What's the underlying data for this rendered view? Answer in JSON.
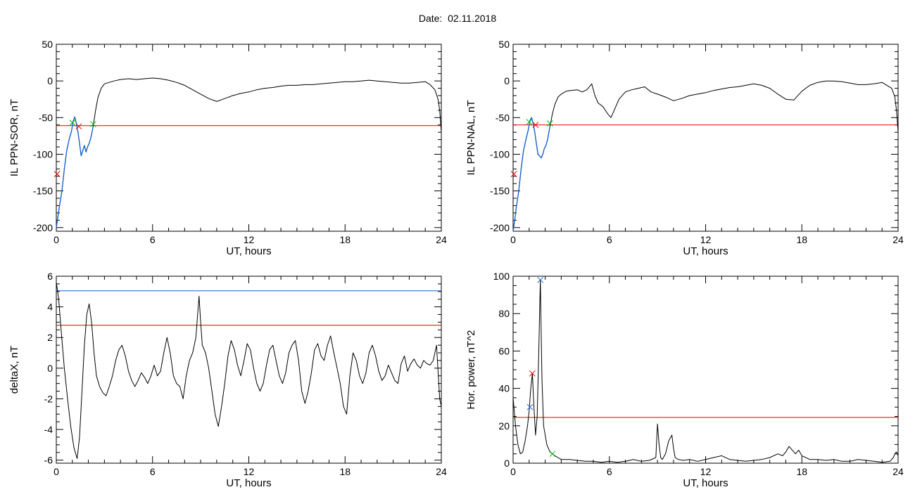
{
  "page": {
    "title": "Date:  02.11.2018"
  },
  "colors": {
    "data": "#000000",
    "threshold": "#e00000",
    "blue": "#1560d0",
    "green": "#00b400",
    "red_marker": "#e00000"
  },
  "chart_data": [
    {
      "type": "line",
      "xlabel": "UT, hours",
      "ylabel": "IL PPN-SOR, nT",
      "xlim": [
        0,
        24
      ],
      "ylim": [
        -205,
        50
      ],
      "xticks": [
        0,
        6,
        12,
        18,
        24
      ],
      "yticks": [
        50,
        0,
        -50,
        -100,
        -150,
        -200
      ],
      "x_minor_step": 1,
      "y_minor_step": 10,
      "threshold": -61,
      "series": [
        {
          "role": "signal",
          "color": "#000000",
          "x": [
            0,
            0.1,
            0.2,
            0.35,
            0.5,
            0.65,
            0.8,
            0.95,
            1.05,
            1.15,
            1.25,
            1.35,
            1.45,
            1.55,
            1.65,
            1.75,
            1.85,
            1.95,
            2.05,
            2.15,
            2.3,
            2.45,
            2.6,
            2.8,
            3.0,
            3.3,
            3.6,
            4.0,
            4.5,
            5.0,
            5.5,
            6.0,
            6.5,
            7.0,
            7.5,
            8.0,
            8.5,
            9.0,
            9.5,
            10.0,
            10.5,
            11.0,
            11.5,
            12.0,
            12.5,
            13.0,
            13.5,
            14.0,
            14.5,
            15.0,
            15.5,
            16.0,
            16.5,
            17.0,
            17.5,
            18.0,
            18.5,
            19.0,
            19.5,
            20.0,
            20.5,
            21.0,
            21.5,
            22.0,
            22.5,
            23.0,
            23.3,
            23.6,
            23.8,
            23.9,
            24.0
          ],
          "y": [
            -200,
            -185,
            -170,
            -150,
            -120,
            -95,
            -80,
            -68,
            -55,
            -49,
            -58,
            -70,
            -85,
            -102,
            -95,
            -88,
            -97,
            -90,
            -85,
            -78,
            -62,
            -40,
            -22,
            -10,
            -4,
            -2,
            0,
            2,
            3,
            2,
            3,
            4,
            3,
            1,
            -2,
            -6,
            -12,
            -18,
            -24,
            -28,
            -24,
            -20,
            -17,
            -15,
            -12,
            -10,
            -9,
            -7,
            -6,
            -6,
            -5,
            -5,
            -4,
            -3,
            -2,
            -1,
            -1,
            0,
            1,
            0,
            -1,
            -2,
            -3,
            -3,
            -2,
            -1,
            -5,
            -12,
            -25,
            -40,
            -70
          ]
        },
        {
          "role": "highlight",
          "color": "#1560d0",
          "x": [
            0,
            0.1,
            0.2,
            0.35,
            0.5,
            0.65,
            0.8,
            0.95,
            1.05,
            1.15,
            1.25,
            1.35,
            1.45,
            1.55,
            1.65,
            1.75,
            1.85,
            1.95,
            2.05,
            2.15,
            2.3
          ],
          "y": [
            -200,
            -185,
            -170,
            -150,
            -120,
            -95,
            -80,
            -68,
            -55,
            -49,
            -58,
            -70,
            -85,
            -102,
            -95,
            -88,
            -97,
            -90,
            -85,
            -78,
            -62
          ]
        }
      ],
      "markers": [
        {
          "x": 1.0,
          "y": -57,
          "color": "#00b400"
        },
        {
          "x": 2.3,
          "y": -59,
          "color": "#00b400"
        },
        {
          "x": 1.4,
          "y": -62,
          "color": "#e00000"
        },
        {
          "x": 0.05,
          "y": -127,
          "color": "#e00000"
        }
      ]
    },
    {
      "type": "line",
      "xlabel": "UT, hours",
      "ylabel": "IL PPN-NAL, nT",
      "xlim": [
        0,
        24
      ],
      "ylim": [
        -205,
        50
      ],
      "xticks": [
        0,
        6,
        12,
        18,
        24
      ],
      "yticks": [
        50,
        0,
        -50,
        -100,
        -150,
        -200
      ],
      "x_minor_step": 1,
      "y_minor_step": 10,
      "threshold": -60,
      "series": [
        {
          "role": "signal",
          "color": "#000000",
          "x": [
            0,
            0.1,
            0.2,
            0.35,
            0.5,
            0.65,
            0.8,
            0.95,
            1.05,
            1.15,
            1.25,
            1.35,
            1.45,
            1.55,
            1.65,
            1.75,
            1.85,
            1.95,
            2.05,
            2.15,
            2.3,
            2.45,
            2.6,
            2.8,
            3.0,
            3.3,
            3.6,
            4.0,
            4.3,
            4.6,
            4.9,
            5.1,
            5.3,
            5.6,
            5.9,
            6.1,
            6.3,
            6.6,
            7.0,
            7.4,
            7.8,
            8.2,
            8.6,
            9.0,
            9.5,
            10.0,
            10.5,
            11.0,
            11.5,
            12.0,
            12.5,
            13.0,
            13.5,
            14.0,
            14.5,
            15.0,
            15.5,
            16.0,
            16.5,
            17.0,
            17.5,
            18.0,
            18.5,
            19.0,
            19.5,
            20.0,
            20.5,
            21.0,
            21.5,
            22.0,
            22.5,
            23.0,
            23.3,
            23.6,
            23.8,
            23.9,
            24.0
          ],
          "y": [
            -205,
            -190,
            -172,
            -150,
            -120,
            -95,
            -80,
            -66,
            -54,
            -50,
            -58,
            -70,
            -85,
            -100,
            -102,
            -105,
            -100,
            -92,
            -88,
            -80,
            -62,
            -45,
            -32,
            -22,
            -18,
            -14,
            -13,
            -12,
            -15,
            -12,
            -4,
            -20,
            -30,
            -35,
            -45,
            -50,
            -40,
            -25,
            -15,
            -12,
            -10,
            -8,
            -15,
            -18,
            -22,
            -27,
            -24,
            -20,
            -18,
            -16,
            -13,
            -11,
            -9,
            -8,
            -6,
            -4,
            -6,
            -10,
            -18,
            -25,
            -26,
            -14,
            -6,
            -2,
            0,
            0,
            -1,
            -3,
            -5,
            -5,
            -4,
            -2,
            -6,
            -10,
            -22,
            -40,
            -70
          ]
        },
        {
          "role": "highlight",
          "color": "#1560d0",
          "x": [
            0,
            0.1,
            0.2,
            0.35,
            0.5,
            0.65,
            0.8,
            0.95,
            1.05,
            1.15,
            1.25,
            1.35,
            1.45,
            1.55,
            1.65,
            1.75,
            1.85,
            1.95,
            2.05,
            2.15,
            2.3
          ],
          "y": [
            -205,
            -190,
            -172,
            -150,
            -120,
            -95,
            -80,
            -66,
            -54,
            -50,
            -58,
            -70,
            -85,
            -100,
            -102,
            -105,
            -100,
            -92,
            -88,
            -80,
            -62
          ]
        }
      ],
      "markers": [
        {
          "x": 1.0,
          "y": -56,
          "color": "#00b400"
        },
        {
          "x": 2.3,
          "y": -58,
          "color": "#00b400"
        },
        {
          "x": 1.4,
          "y": -60,
          "color": "#e00000"
        },
        {
          "x": 0.05,
          "y": -127,
          "color": "#e00000"
        }
      ]
    },
    {
      "type": "line",
      "xlabel": "UT, hours",
      "ylabel": "deltaX, nT",
      "xlim": [
        0,
        24
      ],
      "ylim": [
        -6.2,
        6
      ],
      "xticks": [
        0,
        6,
        12,
        18,
        24
      ],
      "yticks": [
        6,
        4,
        2,
        0,
        -2,
        -4,
        -6
      ],
      "x_minor_step": 1,
      "y_minor_step": 0.5,
      "threshold": 2.8,
      "thresholds_extra": [
        {
          "y": 5.05,
          "color": "#1560d0"
        }
      ],
      "series": [
        {
          "role": "signal",
          "color": "#000000",
          "x": [
            0,
            0.15,
            0.3,
            0.5,
            0.7,
            0.9,
            1.1,
            1.3,
            1.45,
            1.6,
            1.75,
            1.9,
            2.05,
            2.2,
            2.35,
            2.5,
            2.7,
            2.9,
            3.1,
            3.3,
            3.5,
            3.7,
            3.9,
            4.1,
            4.3,
            4.5,
            4.7,
            4.9,
            5.1,
            5.3,
            5.5,
            5.7,
            5.9,
            6.1,
            6.3,
            6.5,
            6.7,
            6.9,
            7.1,
            7.3,
            7.5,
            7.7,
            7.9,
            8.1,
            8.3,
            8.5,
            8.7,
            8.9,
            9.0,
            9.1,
            9.3,
            9.5,
            9.7,
            9.9,
            10.1,
            10.3,
            10.5,
            10.7,
            10.9,
            11.1,
            11.3,
            11.5,
            11.7,
            11.9,
            12.1,
            12.3,
            12.5,
            12.7,
            12.9,
            13.1,
            13.3,
            13.5,
            13.7,
            13.9,
            14.1,
            14.3,
            14.5,
            14.7,
            14.9,
            15.1,
            15.3,
            15.5,
            15.7,
            15.9,
            16.1,
            16.3,
            16.5,
            16.7,
            16.9,
            17.1,
            17.3,
            17.5,
            17.7,
            17.9,
            18.1,
            18.3,
            18.5,
            18.7,
            18.9,
            19.1,
            19.3,
            19.5,
            19.7,
            19.9,
            20.1,
            20.3,
            20.5,
            20.7,
            20.9,
            21.1,
            21.3,
            21.5,
            21.7,
            21.9,
            22.1,
            22.3,
            22.5,
            22.7,
            22.9,
            23.1,
            23.3,
            23.5,
            23.7,
            23.9,
            24.0
          ],
          "y": [
            5.6,
            4.5,
            2.5,
            0,
            -2,
            -3.8,
            -5.2,
            -5.9,
            -4.5,
            -1.5,
            1.5,
            3.5,
            4.2,
            3.0,
            1.0,
            -0.5,
            -1.2,
            -1.6,
            -1.8,
            -1.2,
            -0.5,
            0.5,
            1.2,
            1.5,
            0.8,
            -0.2,
            -0.8,
            -1.2,
            -0.8,
            -0.3,
            -0.6,
            -1.0,
            -0.5,
            0.2,
            -0.5,
            -0.2,
            1.0,
            2.0,
            1.0,
            -0.5,
            -1.0,
            -1.2,
            -2.0,
            -0.5,
            0.5,
            1.0,
            2.0,
            4.7,
            3.0,
            1.5,
            1.0,
            0.0,
            -1.5,
            -3.0,
            -3.8,
            -2.5,
            -1.0,
            0.8,
            1.8,
            1.2,
            0.2,
            -0.5,
            0.5,
            1.6,
            1.2,
            0.0,
            -1.0,
            -1.5,
            -1.0,
            0.2,
            1.2,
            1.5,
            0.5,
            -0.5,
            -1.0,
            -0.3,
            1.0,
            1.5,
            1.8,
            0.5,
            -1.5,
            -2.3,
            -1.5,
            -0.3,
            1.2,
            1.6,
            0.8,
            0.5,
            1.5,
            2.1,
            1.0,
            0.0,
            -1.0,
            -2.5,
            -3.0,
            -0.5,
            1.0,
            0.5,
            -0.5,
            -1.0,
            -0.3,
            1.0,
            1.5,
            0.8,
            -0.2,
            -0.8,
            -0.5,
            0.2,
            -0.3,
            -0.8,
            -1.0,
            0.3,
            0.8,
            -0.2,
            0.3,
            0.6,
            0.2,
            0.0,
            0.5,
            0.3,
            0.2,
            0.5,
            1.5,
            -2.0,
            -2.5
          ]
        }
      ],
      "markers": []
    },
    {
      "type": "line",
      "xlabel": "UT, hours",
      "ylabel": "Hor. power, nT^2",
      "xlim": [
        0,
        24
      ],
      "ylim": [
        0,
        100
      ],
      "xticks": [
        0,
        6,
        12,
        18,
        24
      ],
      "yticks": [
        100,
        80,
        60,
        40,
        20,
        0
      ],
      "x_minor_step": 1,
      "y_minor_step": 5,
      "threshold": 24.5,
      "series": [
        {
          "role": "signal",
          "color": "#000000",
          "x": [
            0,
            0.15,
            0.3,
            0.45,
            0.6,
            0.75,
            0.9,
            1.0,
            1.1,
            1.2,
            1.3,
            1.4,
            1.5,
            1.6,
            1.65,
            1.7,
            1.75,
            1.8,
            1.9,
            2.0,
            2.1,
            2.2,
            2.3,
            2.45,
            2.6,
            2.8,
            3.0,
            3.5,
            4.0,
            4.5,
            5.0,
            5.5,
            6.0,
            6.5,
            7.0,
            7.5,
            8.0,
            8.5,
            8.9,
            9.0,
            9.1,
            9.2,
            9.3,
            9.5,
            9.7,
            9.9,
            10.0,
            10.1,
            10.3,
            10.6,
            11.0,
            11.5,
            12.0,
            12.5,
            13.0,
            13.5,
            14.0,
            14.5,
            15.0,
            15.5,
            16.0,
            16.5,
            16.8,
            17.0,
            17.2,
            17.4,
            17.6,
            17.8,
            18.0,
            18.5,
            19.0,
            19.5,
            20.0,
            20.5,
            21.0,
            21.5,
            22.0,
            22.5,
            23.0,
            23.5,
            23.7,
            23.8,
            23.9,
            24.0
          ],
          "y": [
            35,
            20,
            10,
            5,
            6,
            12,
            20,
            28,
            40,
            48,
            30,
            15,
            25,
            60,
            80,
            98,
            70,
            45,
            20,
            15,
            10,
            8,
            6,
            5,
            4,
            3,
            2,
            2,
            1.5,
            1,
            1,
            0.5,
            1,
            0.5,
            1,
            2,
            1,
            1.5,
            3,
            21,
            10,
            3,
            2,
            5,
            12,
            15,
            8,
            3,
            2,
            1.5,
            2,
            1,
            2,
            3,
            4,
            2,
            1.5,
            1,
            1.5,
            2,
            3,
            5,
            4,
            6,
            9,
            7,
            5,
            7,
            4,
            2,
            2,
            1.5,
            2,
            1,
            1,
            2,
            1.5,
            1,
            0.5,
            1,
            3,
            5,
            6,
            4
          ]
        }
      ],
      "markers": [
        {
          "x": 1.2,
          "y": 48,
          "color": "#e00000"
        },
        {
          "x": 1.7,
          "y": 98,
          "color": "#1560d0"
        },
        {
          "x": 1.05,
          "y": 30,
          "color": "#1560d0"
        },
        {
          "x": 2.45,
          "y": 5,
          "color": "#00b400"
        }
      ]
    }
  ]
}
